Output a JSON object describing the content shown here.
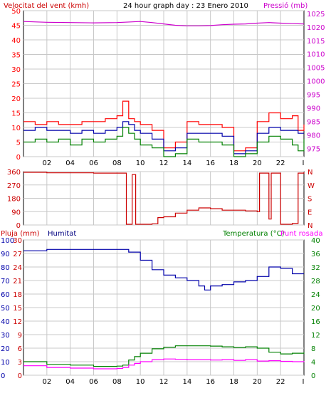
{
  "header": {
    "wind_title": "Velocitat del vent (kmh)",
    "center_title": "24 hour graph day : 23 Enero 2010",
    "pressure_title": "Pressió (mb)"
  },
  "colors": {
    "wind": "#ff0000",
    "gust": "#ff0000",
    "avg_wind": "#0000aa",
    "wind_low": "#008000",
    "pressure": "#cc00cc",
    "direction": "#cc0000",
    "rain": "#cc0000",
    "humidity": "#0000aa",
    "temperature": "#008000",
    "dewpoint": "#ff00ff",
    "grid": "#c8c8c8",
    "frame": "#000000"
  },
  "chart_data": [
    {
      "type": "line",
      "panel": "wind-pressure",
      "x_ticks": [
        "02",
        "04",
        "06",
        "08",
        "10",
        "12",
        "14",
        "16",
        "18",
        "20",
        "22",
        "I"
      ],
      "left_axis": {
        "label": "Velocitat del vent (kmh)",
        "ticks": [
          0,
          5,
          10,
          15,
          20,
          25,
          30,
          35,
          40,
          45,
          50
        ],
        "range": [
          0,
          50
        ]
      },
      "right_axis": {
        "label": "Pressió (mb)",
        "ticks": [
          975,
          980,
          985,
          990,
          995,
          1000,
          1005,
          1010,
          1015,
          1020,
          1025
        ],
        "range": [
          972,
          1026
        ]
      },
      "series": [
        {
          "name": "Velocitat del vent (kmh)",
          "axis": "left",
          "color": "#ff0000",
          "x": [
            0,
            1,
            2,
            3,
            4,
            5,
            6,
            7,
            8,
            8.5,
            9,
            9.5,
            10,
            11,
            12,
            13,
            14,
            15,
            16,
            17,
            18,
            19,
            20,
            21,
            22,
            23,
            23.5,
            24
          ],
          "y": [
            12,
            11,
            12,
            11,
            11,
            12,
            12,
            13,
            14,
            19,
            13,
            12,
            11,
            9,
            3,
            5,
            12,
            11,
            11,
            10,
            2,
            3,
            12,
            15,
            13,
            14,
            9,
            11
          ]
        },
        {
          "axis": "left",
          "color": "#0000aa",
          "x": [
            0,
            1,
            2,
            3,
            4,
            5,
            6,
            7,
            8,
            8.5,
            9,
            9.5,
            10,
            11,
            12,
            13,
            14,
            15,
            16,
            17,
            18,
            19,
            20,
            21,
            22,
            23,
            23.5,
            24
          ],
          "y": [
            9,
            10,
            9,
            9,
            8,
            9,
            8,
            9,
            10,
            12,
            11,
            9,
            8,
            6,
            2,
            3,
            8,
            8,
            8,
            7,
            1,
            2,
            8,
            10,
            9,
            9,
            8,
            8
          ]
        },
        {
          "axis": "left",
          "color": "#008000",
          "x": [
            0,
            1,
            2,
            3,
            4,
            5,
            6,
            7,
            8,
            8.5,
            9,
            9.5,
            10,
            11,
            12,
            13,
            14,
            15,
            16,
            17,
            18,
            19,
            20,
            21,
            22,
            23,
            23.5,
            24
          ],
          "y": [
            5,
            6,
            5,
            6,
            4,
            6,
            5,
            6,
            7,
            10,
            8,
            6,
            4,
            3,
            0,
            1,
            6,
            5,
            5,
            4,
            0,
            1,
            5,
            7,
            6,
            4,
            2,
            6
          ]
        },
        {
          "name": "Pressió (mb)",
          "axis": "right",
          "color": "#cc00cc",
          "x": [
            0,
            2,
            4,
            6,
            8,
            10,
            11,
            12,
            13,
            14,
            15,
            16,
            17,
            18,
            19,
            20,
            21,
            22,
            23,
            24
          ],
          "y": [
            1022,
            1021.7,
            1021.6,
            1021.5,
            1021.6,
            1022.0,
            1021.6,
            1021.1,
            1020.6,
            1020.4,
            1020.4,
            1020.5,
            1020.8,
            1021.0,
            1021.1,
            1021.4,
            1021.6,
            1021.4,
            1021.2,
            1021.1
          ]
        }
      ]
    },
    {
      "type": "line",
      "panel": "wind-direction",
      "left_axis": {
        "ticks": [
          0,
          90,
          180,
          270,
          360
        ],
        "range": [
          0,
          360
        ]
      },
      "right_axis": {
        "ticks": [
          "N",
          "W",
          "S",
          "E",
          "N"
        ]
      },
      "series": [
        {
          "axis": "left",
          "color": "#cc0000",
          "x": [
            0,
            2,
            4,
            6,
            8,
            8.7,
            8.8,
            9.2,
            9.3,
            9.5,
            9.6,
            10,
            11,
            11.5,
            12,
            13,
            14,
            15,
            16,
            17,
            18,
            19,
            20,
            20.2,
            20.5,
            21,
            21.2,
            21.5,
            22,
            22.5,
            23,
            23.5,
            24
          ],
          "y": [
            355,
            352,
            352,
            350,
            350,
            350,
            5,
            5,
            340,
            340,
            5,
            5,
            8,
            50,
            55,
            80,
            100,
            115,
            110,
            100,
            100,
            95,
            90,
            350,
            350,
            40,
            350,
            350,
            5,
            5,
            10,
            350,
            355
          ]
        }
      ]
    },
    {
      "type": "line",
      "panel": "rain-humidity-temperature",
      "labels": {
        "rain": "Pluja (mm)",
        "humidity": "Humitat",
        "temperature": "Temperatura (°C)",
        "dewpoint": "Punt rosada"
      },
      "left_rain_ticks": [
        0,
        3,
        6,
        9,
        12,
        15,
        18,
        21,
        24,
        27,
        30
      ],
      "left_humidity_ticks": [
        0,
        10,
        20,
        30,
        40,
        50,
        60,
        70,
        80,
        90,
        100
      ],
      "right_axis": {
        "ticks": [
          0,
          4,
          8,
          12,
          16,
          20,
          24,
          28,
          32,
          36,
          40
        ],
        "range": [
          0,
          40
        ]
      },
      "series": [
        {
          "name": "Humitat",
          "axis": "humidity",
          "color": "#0000aa",
          "x": [
            0,
            2,
            4,
            6,
            8,
            8.5,
            9,
            10,
            11,
            12,
            13,
            14,
            15,
            15.5,
            16,
            17,
            18,
            19,
            19.5,
            20,
            21,
            22,
            23,
            24
          ],
          "y": [
            92,
            93,
            93,
            93,
            93,
            93,
            91,
            85,
            78,
            74,
            72,
            70,
            66,
            63,
            66,
            67,
            69,
            70,
            70,
            73,
            80,
            79,
            75,
            75
          ]
        },
        {
          "name": "Temperatura (°C)",
          "axis": "right",
          "color": "#008000",
          "x": [
            0,
            2,
            4,
            6,
            8,
            8.5,
            9,
            9.5,
            10,
            11,
            12,
            13,
            14,
            15,
            16,
            17,
            18,
            19,
            20,
            21,
            22,
            23,
            24
          ],
          "y": [
            4.0,
            3.2,
            3.0,
            2.6,
            2.7,
            3.0,
            4.5,
            5.5,
            6.5,
            7.8,
            8.3,
            8.7,
            8.7,
            8.7,
            8.6,
            8.4,
            8.2,
            8.4,
            8.0,
            6.8,
            6.3,
            6.5,
            6.8
          ]
        },
        {
          "name": "Punt rosada",
          "axis": "right",
          "color": "#ff00ff",
          "x": [
            0,
            2,
            4,
            6,
            8,
            8.5,
            9,
            9.5,
            10,
            11,
            12,
            13,
            14,
            15,
            16,
            17,
            18,
            19,
            20,
            21,
            22,
            23,
            24
          ],
          "y": [
            2.8,
            2.3,
            2.1,
            1.9,
            2.0,
            2.3,
            3.0,
            3.5,
            4.0,
            4.6,
            4.8,
            4.7,
            4.6,
            4.6,
            4.5,
            4.6,
            4.4,
            4.6,
            4.2,
            4.3,
            4.1,
            4.0,
            4.2
          ]
        }
      ]
    }
  ]
}
